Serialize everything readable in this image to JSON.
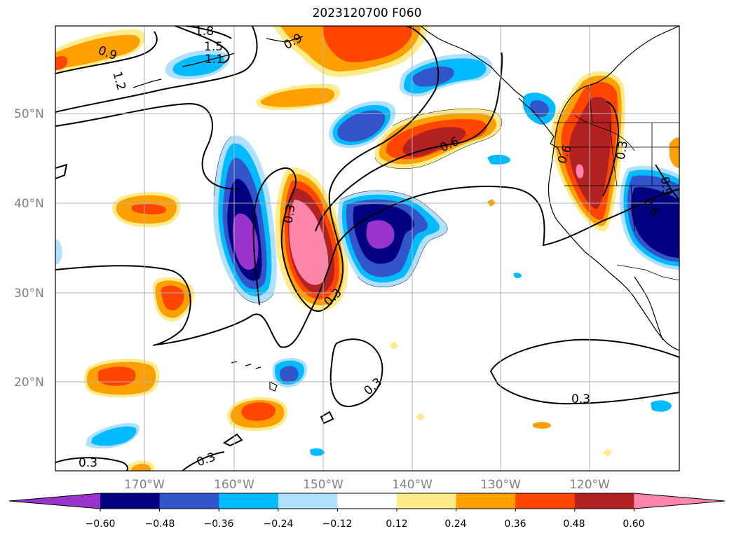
{
  "title": "2023120700 F060",
  "lat_labels": [
    "50°N",
    "40°N",
    "30°N",
    "20°N"
  ],
  "lon_labels": [
    "170°W",
    "160°W",
    "150°W",
    "140°W",
    "130°W",
    "120°W"
  ],
  "colorbar": {
    "ticks": [
      "−0.60",
      "−0.48",
      "−0.36",
      "−0.24",
      "−0.12",
      "0.12",
      "0.24",
      "0.36",
      "0.48",
      "0.60"
    ],
    "colors": [
      "#9933cc",
      "#000080",
      "#3355cc",
      "#00bbff",
      "#b0e0ff",
      "#ffffff",
      "#ffeb8a",
      "#ff9f00",
      "#ff4500",
      "#b22222",
      "#ff85aa"
    ]
  },
  "contour_labels": [
    "1.8",
    "1.5",
    "1.1",
    "0.9",
    "1.2",
    "0.9",
    "0.6",
    "0.3",
    "0.3",
    "0.3",
    "0.3",
    "0.3",
    "0.3",
    "0.6",
    "0.3",
    "0.9",
    "0.6"
  ]
}
